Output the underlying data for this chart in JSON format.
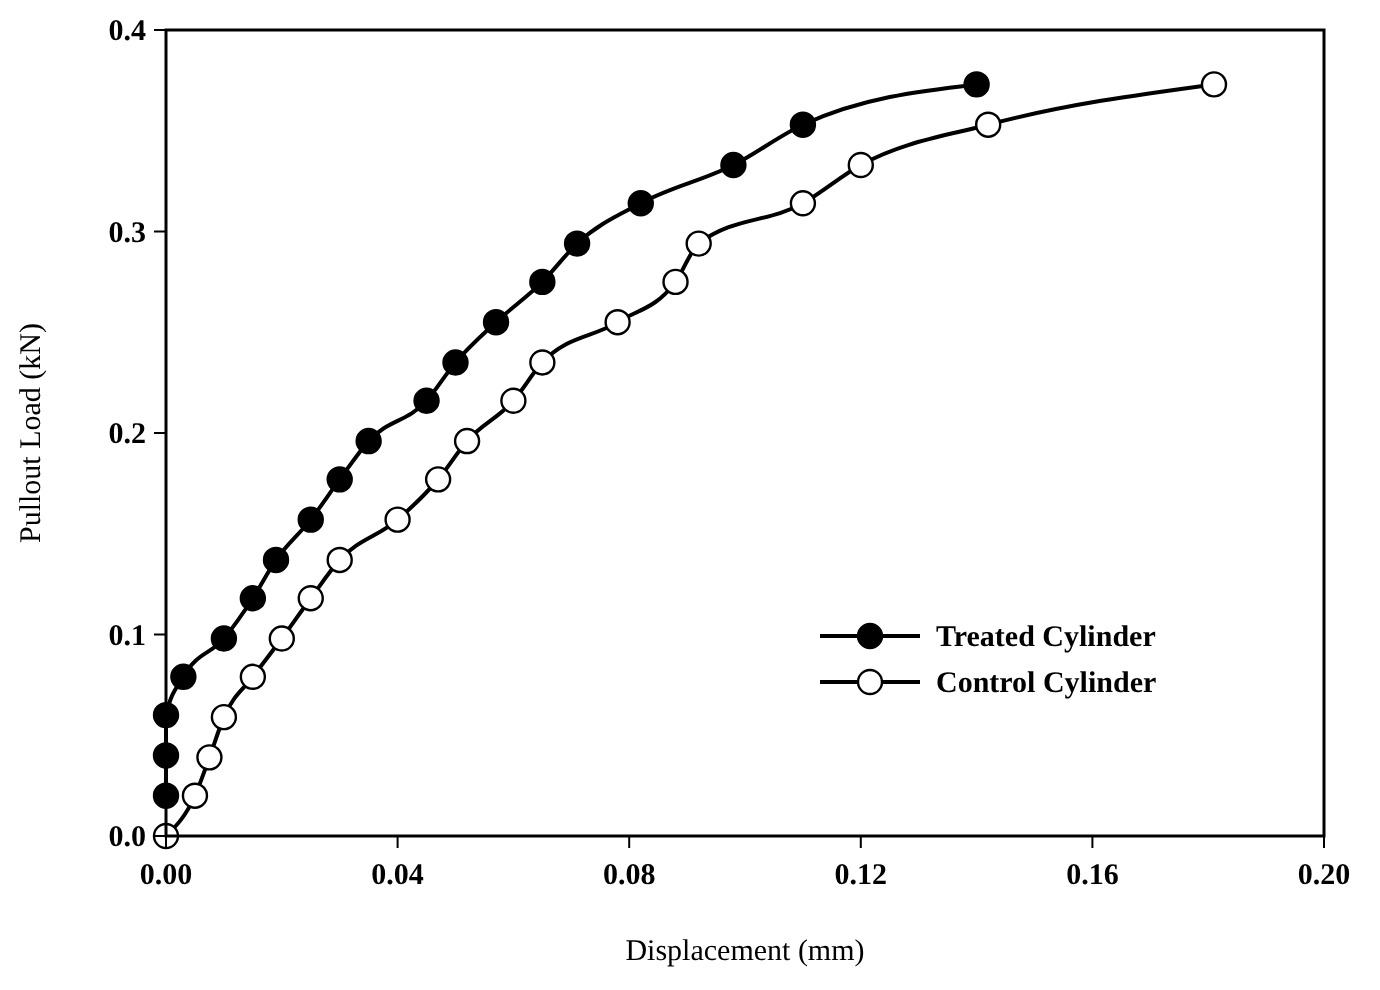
{
  "chart_data": {
    "type": "line",
    "xlabel": "Displacement (mm)",
    "ylabel": "Pullout Load (kN)",
    "xlim": [
      0,
      0.2
    ],
    "ylim": [
      0,
      0.4
    ],
    "xticks": [
      {
        "value": 0,
        "label": "0.00"
      },
      {
        "value": 0.04,
        "label": "0.04"
      },
      {
        "value": 0.08,
        "label": "0.08"
      },
      {
        "value": 0.12,
        "label": "0.12"
      },
      {
        "value": 0.16,
        "label": "0.16"
      },
      {
        "value": 0.2,
        "label": "0.20"
      }
    ],
    "yticks": [
      {
        "value": 0,
        "label": "0.0"
      },
      {
        "value": 0.1,
        "label": "0.1"
      },
      {
        "value": 0.2,
        "label": "0.2"
      },
      {
        "value": 0.3,
        "label": "0.3"
      },
      {
        "value": 0.4,
        "label": "0.4"
      }
    ],
    "grid": false,
    "legend": "right",
    "line_style": "solid",
    "marker": "circle",
    "series": [
      {
        "name": "Treated Cylinder",
        "color": "#000000",
        "x": [
          0,
          0,
          0,
          0.003,
          0.01,
          0.015,
          0.019,
          0.025,
          0.03,
          0.035,
          0.045,
          0.05,
          0.057,
          0.065,
          0.071,
          0.082,
          0.098,
          0.11,
          0.14
        ],
        "values": [
          0.02,
          0.04,
          0.06,
          0.079,
          0.098,
          0.118,
          0.137,
          0.157,
          0.177,
          0.196,
          0.216,
          0.235,
          0.255,
          0.275,
          0.294,
          0.314,
          0.333,
          0.353,
          0.373
        ]
      },
      {
        "name": "Control Cylinder",
        "color": "#000000",
        "x": [
          0,
          0.005,
          0.0075,
          0.01,
          0.015,
          0.02,
          0.025,
          0.03,
          0.04,
          0.047,
          0.052,
          0.06,
          0.065,
          0.078,
          0.088,
          0.092,
          0.11,
          0.12,
          0.142,
          0.181
        ],
        "values": [
          0,
          0.02,
          0.039,
          0.059,
          0.079,
          0.098,
          0.118,
          0.137,
          0.157,
          0.177,
          0.196,
          0.216,
          0.235,
          0.255,
          0.275,
          0.294,
          0.314,
          0.333,
          0.353,
          0.373
        ]
      }
    ]
  }
}
